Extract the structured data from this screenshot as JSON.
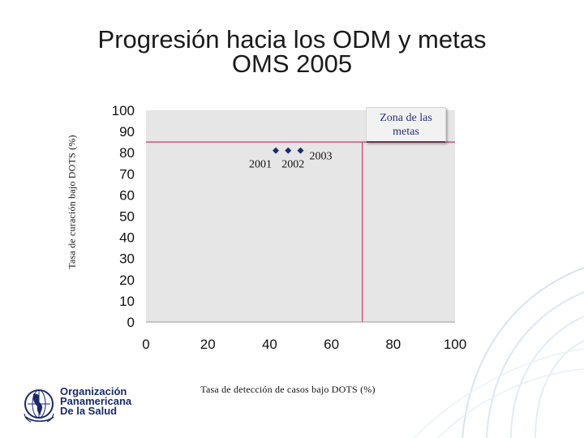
{
  "slide": {
    "title_line1": "Progresión hacia los ODM y metas",
    "title_line2": "OMS 2005"
  },
  "logo": {
    "line1": "Organización",
    "line2": "Panamericana",
    "line3": "De la Salud",
    "icon": "globe-americas-icon"
  },
  "chart_data": {
    "type": "scatter",
    "xlabel": "Tasa de detección de casos  bajo DOTS (%)",
    "ylabel": "Tasa de curación bajo DOTS (%)",
    "xlim": [
      0,
      100
    ],
    "ylim": [
      0,
      100
    ],
    "xticks": [
      0,
      20,
      40,
      60,
      80,
      100
    ],
    "yticks": [
      0,
      10,
      20,
      30,
      40,
      50,
      60,
      70,
      80,
      90,
      100
    ],
    "grid": false,
    "series": [
      {
        "points": [
          {
            "x": 42,
            "y": 81,
            "label": "2001"
          },
          {
            "x": 46,
            "y": 81,
            "label": "2002"
          },
          {
            "x": 50,
            "y": 81,
            "label": "2003"
          }
        ]
      }
    ],
    "target_lines": {
      "x": 70,
      "y": 85
    },
    "annotation": "Zona de las metas",
    "colors": {
      "plot_bg": "#e6e6e6",
      "marker": "#1f2a6b",
      "target_line": "#d6336c",
      "annotation_text": "#2b2f7a"
    }
  }
}
